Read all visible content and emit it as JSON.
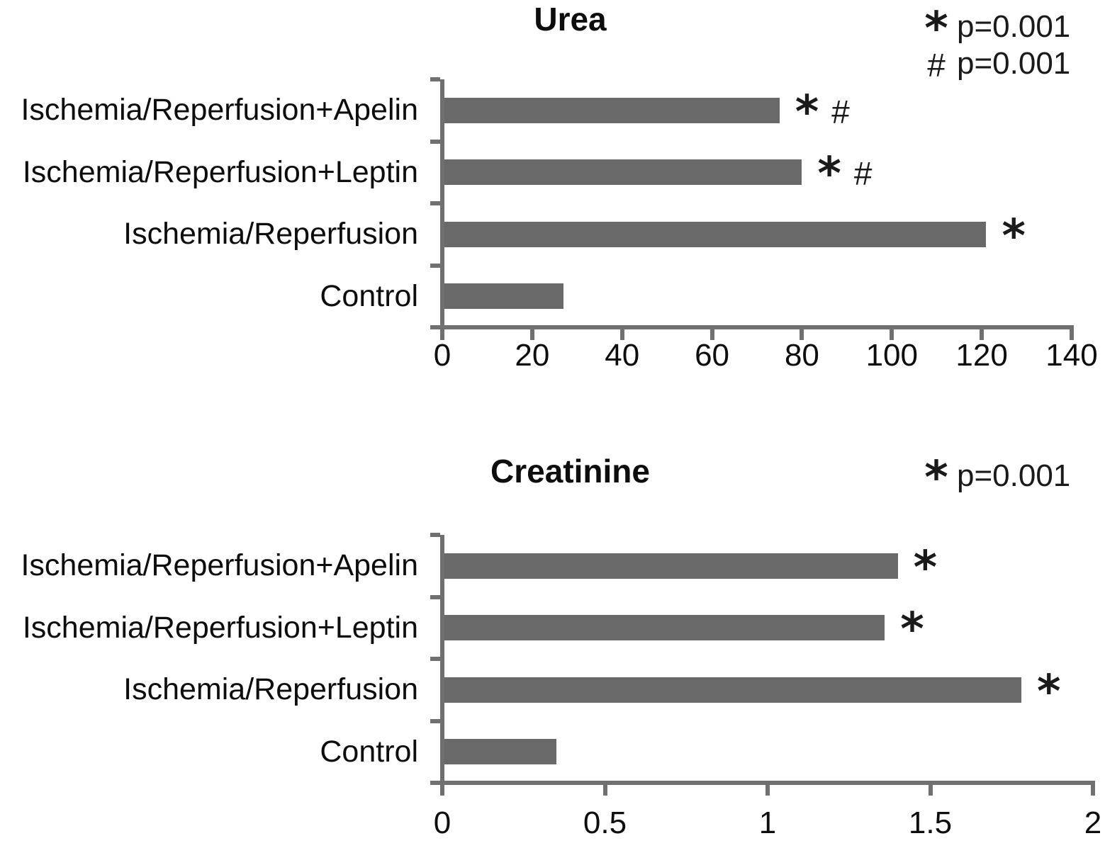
{
  "figure": {
    "background": "#ffffff",
    "bar_color": "#696969",
    "axis_color": "#707070",
    "text_color": "#111111"
  },
  "chart_data": [
    {
      "type": "bar",
      "orientation": "horizontal",
      "title": "Urea",
      "categories": [
        "Ischemia/Reperfusion+Apelin",
        "Ischemia/Reperfusion+Leptin",
        "Ischemia/Reperfusion",
        "Control"
      ],
      "values": [
        75,
        80,
        121,
        27
      ],
      "annotations": [
        [
          "*",
          "#"
        ],
        [
          "*",
          "#"
        ],
        [
          "*"
        ],
        []
      ],
      "xlim": [
        0,
        140
      ],
      "xticks": [
        {
          "value": 0,
          "label": "0"
        },
        {
          "value": 20,
          "label": "20"
        },
        {
          "value": 40,
          "label": "40"
        },
        {
          "value": 60,
          "label": "60"
        },
        {
          "value": 80,
          "label": "80"
        },
        {
          "value": 100,
          "label": "100"
        },
        {
          "value": 120,
          "label": "120"
        },
        {
          "value": 140,
          "label": "140"
        }
      ],
      "legend": [
        {
          "symbol": "*",
          "text": "p=0.001"
        },
        {
          "symbol": "#",
          "text": "p=0.001"
        }
      ],
      "legend_position": "top-right",
      "grid": false
    },
    {
      "type": "bar",
      "orientation": "horizontal",
      "title": "Creatinine",
      "categories": [
        "Ischemia/Reperfusion+Apelin",
        "Ischemia/Reperfusion+Leptin",
        "Ischemia/Reperfusion",
        "Control"
      ],
      "values": [
        1.4,
        1.36,
        1.78,
        0.35
      ],
      "annotations": [
        [
          "*"
        ],
        [
          "*"
        ],
        [
          "*"
        ],
        []
      ],
      "xlim": [
        0,
        2
      ],
      "xticks": [
        {
          "value": 0,
          "label": "0"
        },
        {
          "value": 0.5,
          "label": "0.5"
        },
        {
          "value": 1,
          "label": "1"
        },
        {
          "value": 1.5,
          "label": "1.5"
        },
        {
          "value": 2,
          "label": "2"
        }
      ],
      "legend": [
        {
          "symbol": "*",
          "text": "p=0.001"
        }
      ],
      "legend_position": "top-right",
      "grid": false
    }
  ]
}
